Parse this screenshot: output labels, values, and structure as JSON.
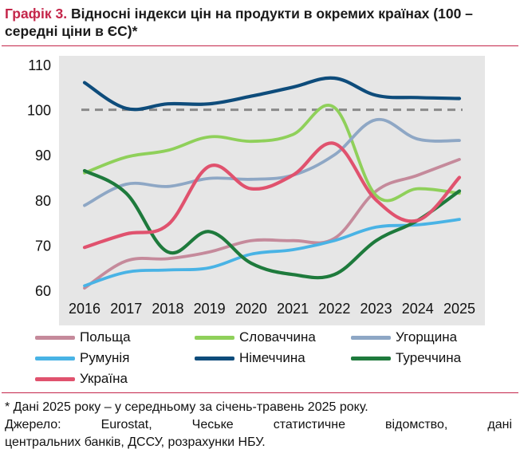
{
  "title": {
    "label": "Графік 3.",
    "text": "Відносні індекси цін на продукти в окремих країнах (100 – середні ціни в ЄС)*"
  },
  "chart_data": {
    "type": "line",
    "title": "",
    "xlabel": "",
    "ylabel": "",
    "x": [
      2016,
      2017,
      2018,
      2019,
      2020,
      2021,
      2022,
      2023,
      2024,
      2025
    ],
    "ylim": [
      60,
      110
    ],
    "yticks": [
      60,
      70,
      80,
      90,
      100,
      110
    ],
    "reference_line": {
      "value": 100,
      "style": "dashed",
      "color": "#8a8a8a"
    },
    "grid": false,
    "legend_position": "bottom",
    "series": [
      {
        "name": "Польща",
        "color": "#c58a9b",
        "values": [
          60.5,
          66.5,
          67.0,
          68.5,
          71.0,
          71.0,
          71.5,
          82.0,
          85.5,
          89.0
        ]
      },
      {
        "name": "Словаччина",
        "color": "#8fd05a",
        "values": [
          86.0,
          89.5,
          91.0,
          94.0,
          93.0,
          94.5,
          100.5,
          81.0,
          82.5,
          81.5
        ]
      },
      {
        "name": "Угорщина",
        "color": "#8ea7c5",
        "values": [
          78.8,
          83.5,
          83.0,
          84.8,
          84.6,
          85.5,
          90.0,
          97.8,
          93.5,
          93.2
        ]
      },
      {
        "name": "Румунія",
        "color": "#49b3e5",
        "values": [
          61.0,
          64.0,
          64.5,
          65.0,
          68.0,
          69.0,
          71.0,
          74.0,
          74.5,
          75.7
        ]
      },
      {
        "name": "Німеччина",
        "color": "#0e4c7b",
        "values": [
          106.0,
          100.3,
          101.3,
          101.3,
          103.0,
          105.0,
          107.0,
          103.2,
          102.7,
          102.5
        ]
      },
      {
        "name": "Туреччина",
        "color": "#1e7a3c",
        "values": [
          86.5,
          81.5,
          68.5,
          73.0,
          66.0,
          63.5,
          63.5,
          71.0,
          75.5,
          82.0
        ]
      },
      {
        "name": "Україна",
        "color": "#e0526e",
        "values": [
          69.5,
          72.5,
          74.5,
          87.5,
          82.5,
          85.5,
          92.5,
          80.0,
          75.5,
          85.0
        ]
      }
    ]
  },
  "notes": {
    "line1": "* Дані 2025 року – у середньому за січень-травень 2025 року.",
    "line2": "Джерело: Eurostat, Чеське статистичне відомство, дані",
    "line3": "центральних банків, ДССУ, розрахунки НБУ."
  }
}
